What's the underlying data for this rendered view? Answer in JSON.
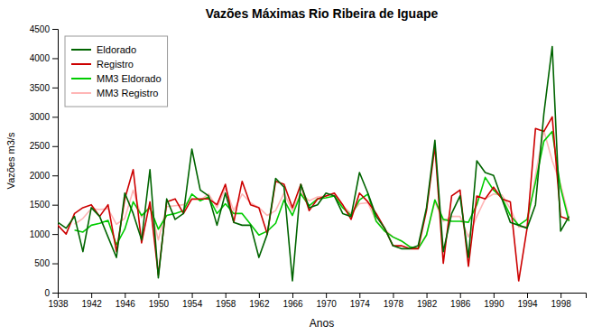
{
  "chart_data": {
    "type": "line",
    "title": "Vazões Máximas Rio Ribeira de Iguape",
    "xlabel": "Anos",
    "ylabel": "Vazões m3/s",
    "x": [
      1938,
      1939,
      1940,
      1941,
      1942,
      1943,
      1944,
      1945,
      1946,
      1947,
      1948,
      1949,
      1950,
      1951,
      1952,
      1953,
      1954,
      1955,
      1956,
      1957,
      1958,
      1959,
      1960,
      1961,
      1962,
      1963,
      1964,
      1965,
      1966,
      1967,
      1968,
      1969,
      1970,
      1971,
      1972,
      1973,
      1974,
      1975,
      1976,
      1977,
      1978,
      1979,
      1980,
      1981,
      1982,
      1983,
      1984,
      1985,
      1986,
      1987,
      1988,
      1989,
      1990,
      1991,
      1992,
      1993,
      1994,
      1995,
      1996,
      1997,
      1998,
      1999,
      2000
    ],
    "series": [
      {
        "name": "Eldorado",
        "color": "#006400",
        "values": [
          1200,
          1100,
          1300,
          700,
          1450,
          1300,
          950,
          600,
          1700,
          1350,
          900,
          2100,
          250,
          1600,
          1250,
          1350,
          2450,
          1750,
          1650,
          1150,
          1700,
          1200,
          1150,
          1150,
          600,
          1000,
          1950,
          1800,
          200,
          1850,
          1450,
          1500,
          1700,
          1650,
          1350,
          1300,
          2050,
          1700,
          1300,
          1100,
          800,
          750,
          750,
          800,
          1450,
          2600,
          700,
          1350,
          1650,
          600,
          2250,
          2050,
          2000,
          1600,
          1200,
          1150,
          1100,
          1500,
          3050,
          4200,
          1050,
          1300,
          null
        ]
      },
      {
        "name": "Registro",
        "color": "#cc0000",
        "values": [
          1150,
          1000,
          1350,
          1450,
          1500,
          1300,
          1500,
          700,
          1600,
          2100,
          850,
          1550,
          300,
          1550,
          1600,
          1350,
          1600,
          1600,
          1600,
          1500,
          1850,
          1200,
          1900,
          1500,
          1450,
          1000,
          1900,
          1850,
          1450,
          1850,
          1400,
          1600,
          1650,
          1700,
          1500,
          1250,
          1700,
          1550,
          1350,
          1100,
          800,
          800,
          750,
          750,
          1400,
          2500,
          500,
          1650,
          1750,
          450,
          1650,
          1600,
          1800,
          1600,
          1550,
          200,
          1100,
          2800,
          2750,
          3000,
          1300,
          1250,
          null
        ]
      },
      {
        "name": "MM3 Eldorado",
        "color": "#00cc00",
        "values": [
          null,
          null,
          1067,
          1033,
          1150,
          1183,
          1233,
          817,
          1083,
          1550,
          1317,
          1450,
          1083,
          1317,
          1350,
          1400,
          1683,
          1567,
          1633,
          1350,
          1517,
          1350,
          1350,
          1167,
          983,
          1050,
          1183,
          1583,
          1317,
          1683,
          1483,
          1600,
          1617,
          1650,
          1450,
          1317,
          1583,
          1683,
          1217,
          1050,
          950,
          883,
          783,
          750,
          983,
          1583,
          1250,
          1217,
          1217,
          1200,
          1500,
          1967,
          1750,
          1617,
          1317,
          1150,
          1250,
          1883,
          2583,
          2750,
          1783,
          1217,
          null
        ]
      },
      {
        "name": "MM3 Registro",
        "color": "#ffb6b6",
        "values": [
          null,
          null,
          1167,
          1267,
          1433,
          1417,
          1433,
          1167,
          1267,
          1750,
          1283,
          1483,
          900,
          1467,
          1483,
          1500,
          1583,
          1583,
          1683,
          1450,
          1783,
          1400,
          1683,
          1533,
          1450,
          1317,
          1400,
          1700,
          1400,
          1700,
          1567,
          1633,
          1650,
          1683,
          1483,
          1350,
          1517,
          1533,
          1217,
          1083,
          950,
          883,
          783,
          750,
          983,
          1550,
          1217,
          1300,
          1300,
          950,
          1300,
          1600,
          1683,
          1667,
          1433,
          1117,
          1133,
          2000,
          2767,
          2250,
          1850,
          1283,
          null
        ]
      }
    ],
    "xlim": [
      1938,
      2001
    ],
    "xticks": [
      1938,
      1942,
      1946,
      1950,
      1954,
      1958,
      1962,
      1966,
      1970,
      1974,
      1978,
      1982,
      1986,
      1990,
      1994,
      1998
    ],
    "ylim": [
      0,
      4500
    ],
    "yticks": [
      0,
      500,
      1000,
      1500,
      2000,
      2500,
      3000,
      3500,
      4000,
      4500
    ],
    "grid": false,
    "legend": "upper left"
  }
}
